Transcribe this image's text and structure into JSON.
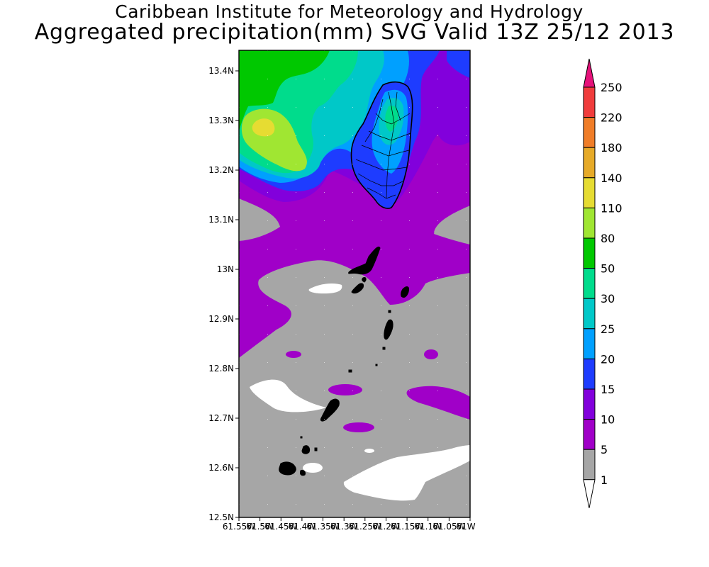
{
  "title": {
    "line1": "Caribbean Institute for Meteorology and Hydrology",
    "line2": "Aggregated precipitation(mm) SVG Valid 13Z 25/12 2013"
  },
  "map": {
    "lon_range": [
      -61.55,
      -61.0
    ],
    "lat_range": [
      12.5,
      13.44
    ],
    "y_tick_labels": [
      "13.4N",
      "13.3N",
      "13.2N",
      "13.1N",
      "13N",
      "12.9N",
      "12.8N",
      "12.7N",
      "12.6N",
      "12.5N"
    ],
    "x_tick_labels": [
      "61.55W",
      "61.5W",
      "61.45W",
      "61.4W",
      "61.35W",
      "61.3W",
      "61.25W",
      "61.2W",
      "61.15W",
      "61.1W",
      "61.05W",
      "61W"
    ]
  },
  "colorbar": {
    "levels": [
      "250",
      "220",
      "180",
      "140",
      "110",
      "80",
      "50",
      "30",
      "25",
      "20",
      "15",
      "10",
      "5",
      "1"
    ],
    "colors": {
      "top_triangle": "#e6127a",
      "250": "#f03c3c",
      "220": "#f07d28",
      "180": "#e6aa28",
      "140": "#e6dc32",
      "110": "#a0e632",
      "80": "#00c800",
      "50": "#00dc8c",
      "30": "#00c8c8",
      "25": "#00a0ff",
      "20": "#1e3cff",
      "15": "#8200dc",
      "10": "#a000c8",
      "5": "#a6a6a6",
      "1": "#ffffff"
    }
  },
  "colors": {
    "no_rain": "#ffffff",
    "light": "#a6a6a6",
    "moderate": "#a000c8",
    "heavy": "#8200dc",
    "very_heavy": "#1e3cff",
    "coast": "#000000"
  }
}
